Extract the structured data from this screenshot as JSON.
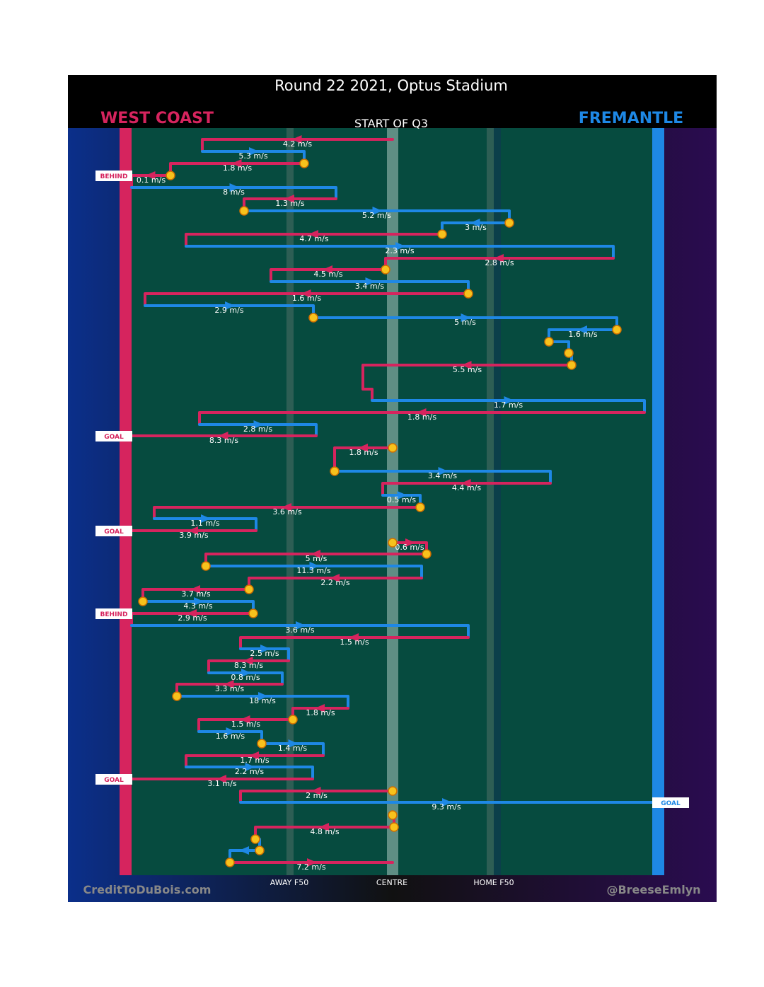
{
  "title": "Round 22 2021, Optus Stadium",
  "teams": {
    "home": "WEST COAST",
    "away": "FREMANTLE"
  },
  "start": "START OF Q3",
  "axis": [
    "AWAY F50",
    "CENTRE",
    "HOME F50"
  ],
  "credits": {
    "left": "CreditToDuBois.com",
    "right": "@BreeseEmlyn"
  },
  "speeds": [
    "4.2 m/s",
    "5.3 m/s",
    "1.8 m/s",
    "0.1 m/s",
    "8 m/s",
    "1.3 m/s",
    "5.2 m/s",
    "3 m/s",
    "4.7 m/s",
    "2.3 m/s",
    "2.8 m/s",
    "4.5 m/s",
    "3.4 m/s",
    "1.6 m/s",
    "2.9 m/s",
    "5 m/s",
    "1.6 m/s",
    "5.5 m/s",
    "1.7 m/s",
    "1.8 m/s",
    "2.8 m/s",
    "8.3 m/s",
    "1.8 m/s",
    "3.4 m/s",
    "4.4 m/s",
    "0.5 m/s",
    "3.6 m/s",
    "1.1 m/s",
    "3.9 m/s",
    "0.6 m/s",
    "5 m/s",
    "11.3 m/s",
    "2.2 m/s",
    "3.7 m/s",
    "4.3 m/s",
    "2.9 m/s",
    "3.6 m/s",
    "1.5 m/s",
    "2.5 m/s",
    "8.3 m/s",
    "0.8 m/s",
    "3.3 m/s",
    "18 m/s",
    "1.8 m/s",
    "1.5 m/s",
    "1.6 m/s",
    "1.4 m/s",
    "1.7 m/s",
    "2.2 m/s",
    "3.1 m/s",
    "2 m/s",
    "9.3 m/s",
    "4.8 m/s",
    "7.2 m/s"
  ],
  "outcomes": [
    "BEHIND",
    "GOAL",
    "GOAL",
    "BEHIND",
    "GOAL",
    "GOAL"
  ]
}
